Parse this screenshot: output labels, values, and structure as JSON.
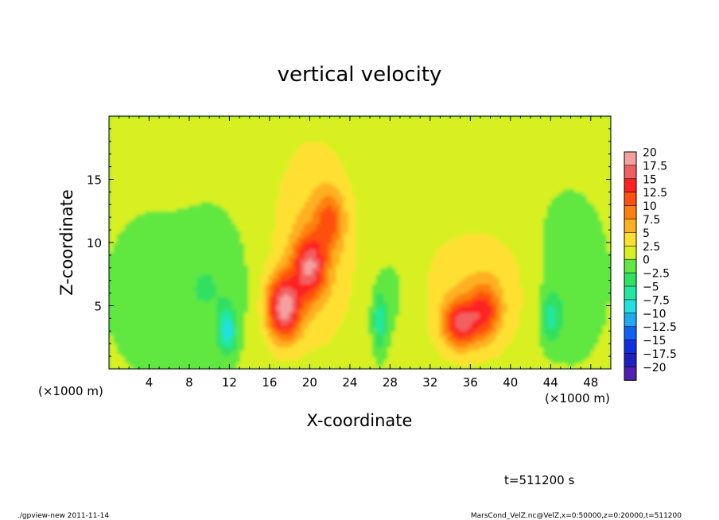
{
  "chart_data": {
    "type": "heatmap",
    "title": "vertical velocity",
    "xlabel": "X-coordinate",
    "ylabel": "Z-coordinate",
    "x_unit_label": "(×1000 m)",
    "x_unit_label_right": "(×1000 m)",
    "xlim": [
      0,
      50
    ],
    "ylim": [
      0,
      20
    ],
    "x_ticks": [
      4,
      8,
      12,
      16,
      20,
      24,
      28,
      32,
      36,
      40,
      44,
      48
    ],
    "y_ticks": [
      5,
      10,
      15
    ],
    "colorbar": {
      "levels": [
        20,
        17.5,
        15,
        12.5,
        10,
        7.5,
        5,
        2.5,
        0,
        -2.5,
        -5,
        -7.5,
        -10,
        -12.5,
        -15,
        -17.5,
        -20
      ],
      "colors": [
        "#f5a0a0",
        "#f06060",
        "#ff2020",
        "#ff5010",
        "#ff8010",
        "#ffb020",
        "#ffe030",
        "#d8f020",
        "#60e840",
        "#30e060",
        "#20e8a0",
        "#20e0e0",
        "#20a8f0",
        "#1060f8",
        "#1030e0",
        "#2020c0",
        "#5020b0"
      ]
    },
    "background_value": 0.5,
    "features": [
      {
        "x": 17.4,
        "z": 4.9,
        "w": 17,
        "sx": 1.2,
        "sz": 1.8
      },
      {
        "x": 20.0,
        "z": 8.1,
        "w": 13,
        "sx": 1.1,
        "sz": 1.7
      },
      {
        "x": 22.0,
        "z": 11.8,
        "w": 7,
        "sx": 1.0,
        "sz": 1.6
      },
      {
        "x": 35.0,
        "z": 3.6,
        "w": 12,
        "sx": 1.2,
        "sz": 1.3
      },
      {
        "x": 37.4,
        "z": 4.6,
        "w": 9,
        "sx": 1.1,
        "sz": 1.5
      },
      {
        "x": 20.5,
        "z": 10.0,
        "w": 5,
        "sx": 3.0,
        "sz": 6.0
      },
      {
        "x": 36.5,
        "z": 6.0,
        "w": 4,
        "sx": 5.0,
        "sz": 4.0
      },
      {
        "x": 11.8,
        "z": 3.0,
        "w": -9,
        "sx": 0.6,
        "sz": 1.2
      },
      {
        "x": 27.0,
        "z": 3.8,
        "w": -7,
        "sx": 0.5,
        "sz": 1.6
      },
      {
        "x": 44.0,
        "z": 4.0,
        "w": -6,
        "sx": 0.7,
        "sz": 1.4
      },
      {
        "x": 10.0,
        "z": 6.5,
        "w": -3,
        "sx": 2.5,
        "sz": 3.5
      },
      {
        "x": 4.0,
        "z": 6.0,
        "w": -2.5,
        "sx": 2.5,
        "sz": 3.5
      },
      {
        "x": 45.5,
        "z": 7.0,
        "w": -3,
        "sx": 2.5,
        "sz": 4.0
      },
      {
        "x": 28.5,
        "z": 6.0,
        "w": -2,
        "sx": 2.0,
        "sz": 3.0
      }
    ]
  },
  "annotations": {
    "time_label": "t=511200 s",
    "footer_left": "./gpview-new   2011-11-14",
    "footer_right": "MarsCond_VelZ.nc@VelZ,x=0:50000,z=0:20000,t=511200"
  }
}
